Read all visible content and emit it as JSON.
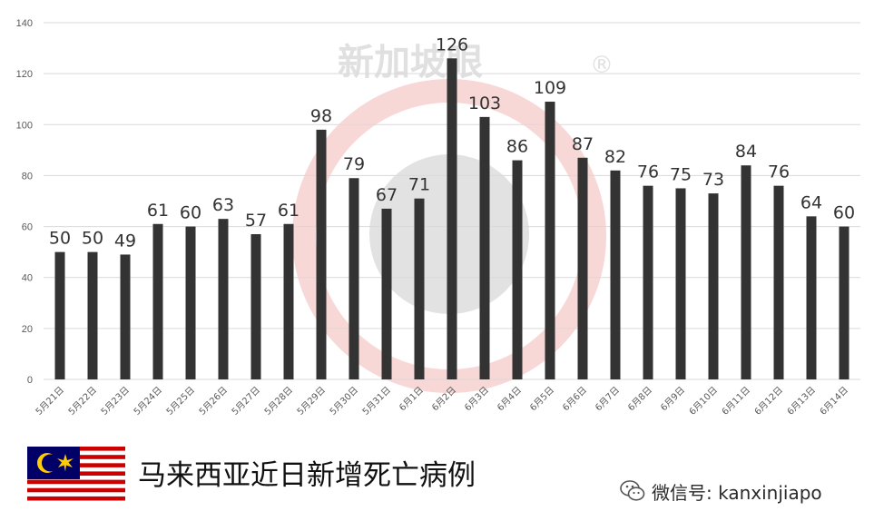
{
  "chart_data": {
    "type": "bar",
    "categories": [
      "5月21日",
      "5月22日",
      "5月23日",
      "5月24日",
      "5月25日",
      "5月26日",
      "5月27日",
      "5月28日",
      "5月29日",
      "5月30日",
      "5月31日",
      "6月1日",
      "6月2日",
      "6月3日",
      "6月4日",
      "6月5日",
      "6月6日",
      "6月7日",
      "6月8日",
      "6月9日",
      "6月10日",
      "6月11日",
      "6月12日",
      "6月13日",
      "6月14日"
    ],
    "values": [
      50,
      50,
      49,
      61,
      60,
      63,
      57,
      61,
      98,
      79,
      67,
      71,
      126,
      103,
      86,
      109,
      87,
      82,
      76,
      75,
      73,
      84,
      76,
      64,
      60
    ],
    "ylim": [
      0,
      140
    ],
    "yticks": [
      0,
      20,
      40,
      60,
      80,
      100,
      120,
      140
    ],
    "grid": true,
    "bar_color": "#333333",
    "title": "",
    "xlabel": "",
    "ylabel": ""
  },
  "watermark": {
    "text": "新加坡眼",
    "registered": "®"
  },
  "footer": {
    "caption": "马来西亚近日新增死亡病例",
    "wechat_text": "微信号: kanxinjiapo"
  },
  "colors": {
    "grid": "#d9d9d9",
    "flag_red": "#cc0001",
    "flag_blue": "#010066",
    "flag_yellow": "#ffcc00"
  },
  "icons": {
    "flag": "malaysia-flag-icon",
    "wechat": "wechat-icon"
  }
}
